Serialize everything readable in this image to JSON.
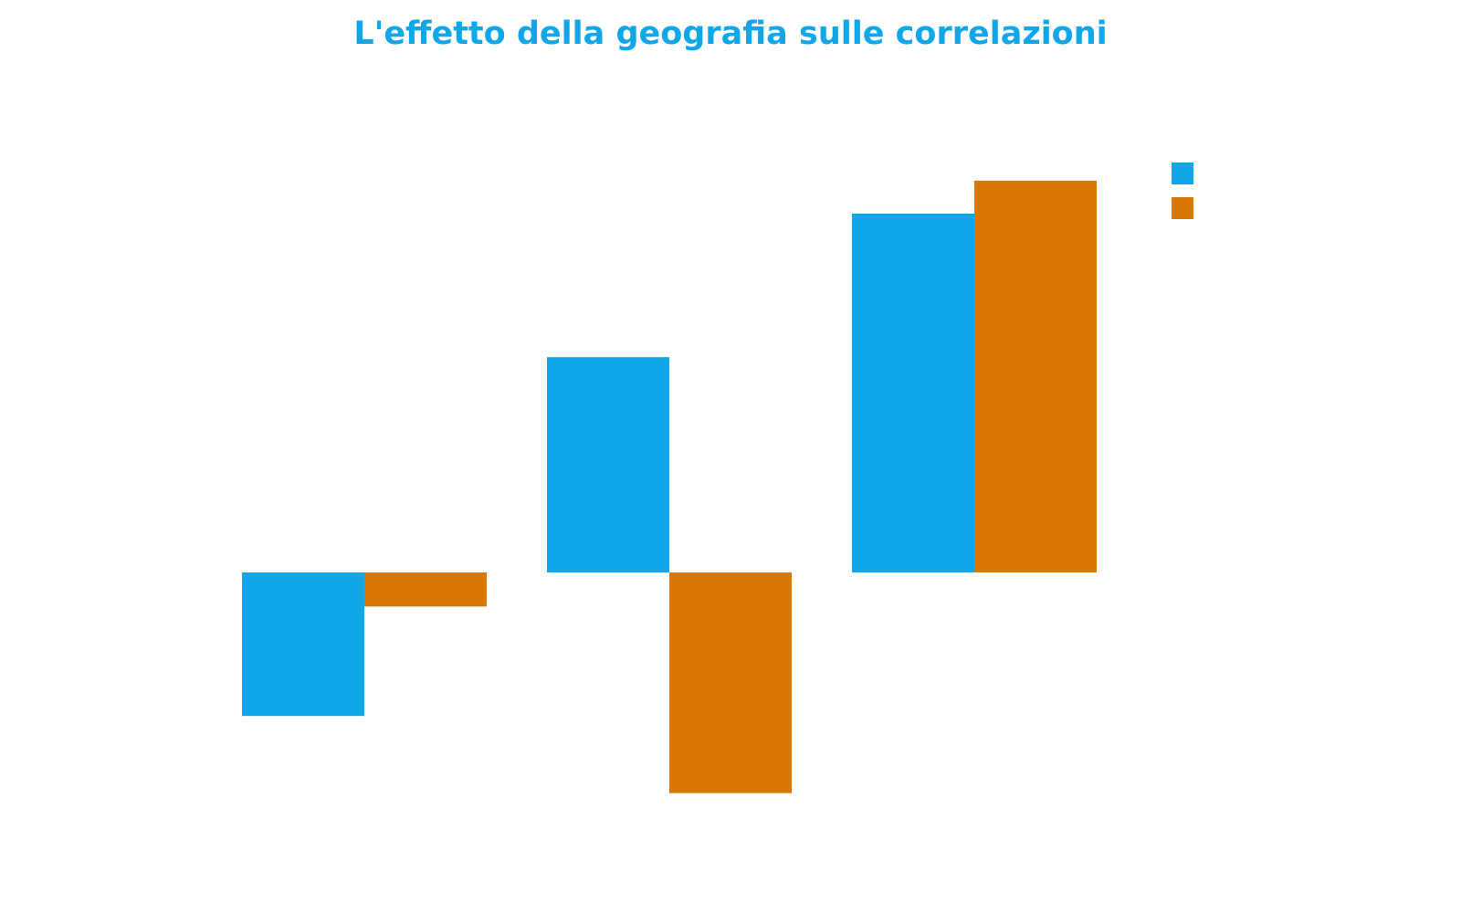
{
  "title": "L'effetto della geografia sulle correlazioni",
  "colors": {
    "title": "#10A6E8",
    "series": [
      "#10A6E8",
      "#DA7703"
    ],
    "background": "#FFFFFF"
  },
  "chart_data": {
    "type": "bar",
    "title": "L'effetto della geografia sulle correlazioni",
    "xlabel": "",
    "ylabel": "",
    "categories": [
      "",
      "",
      ""
    ],
    "series": [
      {
        "values": [
          -0.4,
          0.6,
          1.0
        ]
      },
      {
        "values": [
          -0.095,
          -0.615,
          1.092
        ]
      }
    ],
    "ylim": [
      -0.7,
      1.25
    ],
    "grid": false,
    "legend": "top-right",
    "show_axes": false,
    "show_tick_labels": false
  }
}
